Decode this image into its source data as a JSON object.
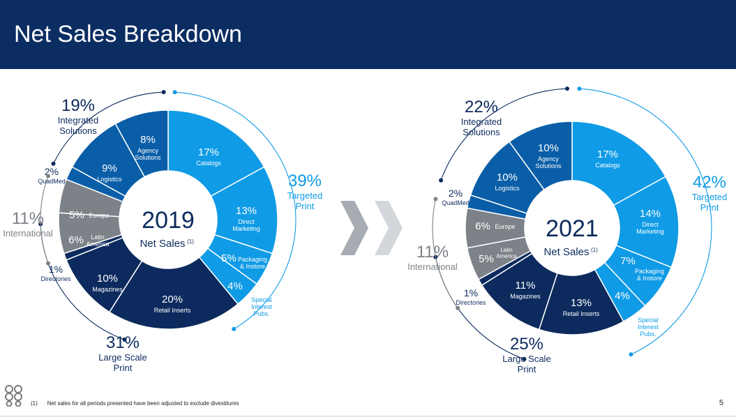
{
  "header": {
    "title": "Net Sales Breakdown"
  },
  "colors": {
    "header_bg": "#0b2d62",
    "light_blue": "#0f9be6",
    "mid_blue": "#0a5ea8",
    "dark_navy": "#0c2a5d",
    "gray": "#7d8288",
    "arrow": "#a6acb2"
  },
  "chart_data": [
    {
      "type": "pie",
      "center_label": "2019",
      "center_sublabel": "Net Sales",
      "center_sup": "(1)",
      "slices": [
        {
          "name": "Catalogs",
          "value": 17,
          "label": "17%",
          "color": "light_blue",
          "group": "Targeted Print"
        },
        {
          "name": "Direct Marketing",
          "value": 13,
          "label": "13%",
          "color": "light_blue",
          "group": "Targeted Print"
        },
        {
          "name": "Packaging & Instore",
          "value": 5,
          "label": "5%",
          "color": "light_blue",
          "group": "Targeted Print"
        },
        {
          "name": "Special Interest Pubs.",
          "value": 4,
          "label": "4%",
          "color": "light_blue",
          "group": "Targeted Print"
        },
        {
          "name": "Retail Inserts",
          "value": 20,
          "label": "20%",
          "color": "dark_navy",
          "group": "Large Scale Print"
        },
        {
          "name": "Magazines",
          "value": 10,
          "label": "10%",
          "color": "dark_navy",
          "group": "Large Scale Print"
        },
        {
          "name": "Directories",
          "value": 1,
          "label": "1%",
          "color": "dark_navy",
          "group": "Large Scale Print"
        },
        {
          "name": "Latin America",
          "value": 6,
          "label": "6%",
          "color": "gray",
          "group": "International"
        },
        {
          "name": "Europe",
          "value": 5,
          "label": "5%",
          "color": "gray",
          "group": "International"
        },
        {
          "name": "QuadMed",
          "value": 2,
          "label": "2%",
          "color": "mid_blue",
          "group": "QuadMed"
        },
        {
          "name": "Logistics",
          "value": 9,
          "label": "9%",
          "color": "mid_blue",
          "group": "Integrated Solutions"
        },
        {
          "name": "Agency Solutions",
          "value": 8,
          "label": "8%",
          "color": "mid_blue",
          "group": "Integrated Solutions"
        }
      ],
      "groups": [
        {
          "name": "Targeted Print",
          "value": 39,
          "label": "39%"
        },
        {
          "name": "Large Scale Print",
          "value": 31,
          "label": "31%"
        },
        {
          "name": "International",
          "value": 11,
          "label": "11%"
        },
        {
          "name": "Integrated Solutions",
          "value": 19,
          "label": "19%"
        }
      ]
    },
    {
      "type": "pie",
      "center_label": "2021",
      "center_sublabel": "Net Sales",
      "center_sup": "(1)",
      "slices": [
        {
          "name": "Catalogs",
          "value": 17,
          "label": "17%",
          "color": "light_blue",
          "group": "Targeted Print"
        },
        {
          "name": "Direct Marketing",
          "value": 14,
          "label": "14%",
          "color": "light_blue",
          "group": "Targeted Print"
        },
        {
          "name": "Packaging & Instore",
          "value": 7,
          "label": "7%",
          "color": "light_blue",
          "group": "Targeted Print"
        },
        {
          "name": "Special Interest Pubs.",
          "value": 4,
          "label": "4%",
          "color": "light_blue",
          "group": "Targeted Print"
        },
        {
          "name": "Retail Inserts",
          "value": 13,
          "label": "13%",
          "color": "dark_navy",
          "group": "Large Scale Print"
        },
        {
          "name": "Magazines",
          "value": 11,
          "label": "11%",
          "color": "dark_navy",
          "group": "Large Scale Print"
        },
        {
          "name": "Directories",
          "value": 1,
          "label": "1%",
          "color": "dark_navy",
          "group": "Large Scale Print"
        },
        {
          "name": "Latin America",
          "value": 5,
          "label": "5%",
          "color": "gray",
          "group": "International"
        },
        {
          "name": "Europe",
          "value": 6,
          "label": "6%",
          "color": "gray",
          "group": "International"
        },
        {
          "name": "QuadMed",
          "value": 2,
          "label": "2%",
          "color": "mid_blue",
          "group": "QuadMed"
        },
        {
          "name": "Logistics",
          "value": 10,
          "label": "10%",
          "color": "mid_blue",
          "group": "Integrated Solutions"
        },
        {
          "name": "Agency Solutions",
          "value": 10,
          "label": "10%",
          "color": "mid_blue",
          "group": "Integrated Solutions"
        }
      ],
      "groups": [
        {
          "name": "Targeted Print",
          "value": 42,
          "label": "42%"
        },
        {
          "name": "Large Scale Print",
          "value": 25,
          "label": "25%"
        },
        {
          "name": "International",
          "value": 11,
          "label": "11%"
        },
        {
          "name": "Integrated Solutions",
          "value": 22,
          "label": "22%"
        }
      ]
    }
  ],
  "footnote": {
    "marker": "(1)",
    "text": "Net sales for all periods presented have been adjusted to exclude divestitures"
  },
  "page_number": "5"
}
